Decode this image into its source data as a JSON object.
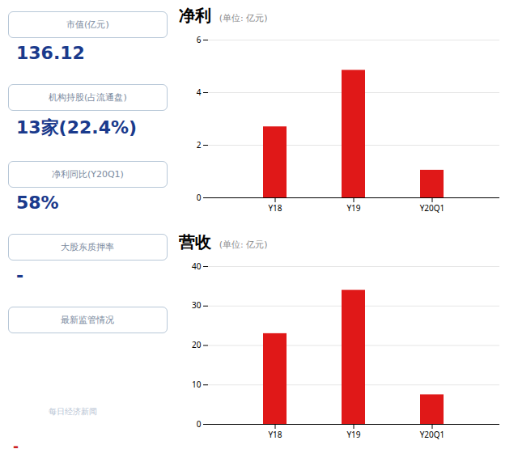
{
  "chart_data": [
    {
      "type": "bar",
      "title": "净利",
      "subtitle": "(单位: 亿元)",
      "categories": [
        "Y18",
        "Y19",
        "Y20Q1"
      ],
      "values": [
        2.7,
        4.85,
        1.05
      ],
      "color": "#e01818",
      "ylim": [
        0,
        6
      ],
      "yticks": [
        0,
        2,
        4,
        6
      ],
      "grid": true
    },
    {
      "type": "bar",
      "title": "营收",
      "subtitle": "(单位: 亿元)",
      "categories": [
        "Y18",
        "Y19",
        "Y20Q1"
      ],
      "values": [
        23.0,
        34.0,
        7.5
      ],
      "color": "#e01818",
      "ylim": [
        0,
        40
      ],
      "yticks": [
        0,
        10,
        20,
        30,
        40
      ],
      "grid": true
    }
  ],
  "annotations": [
    "市值(亿元)",
    "136.12",
    "机构持股(占流通盘)",
    "13家(22.4%)",
    "净利同比(Y20Q1)",
    "58%",
    "大股东质押率",
    "-",
    "最新监管情况",
    "-",
    "每日经济新闻"
  ]
}
